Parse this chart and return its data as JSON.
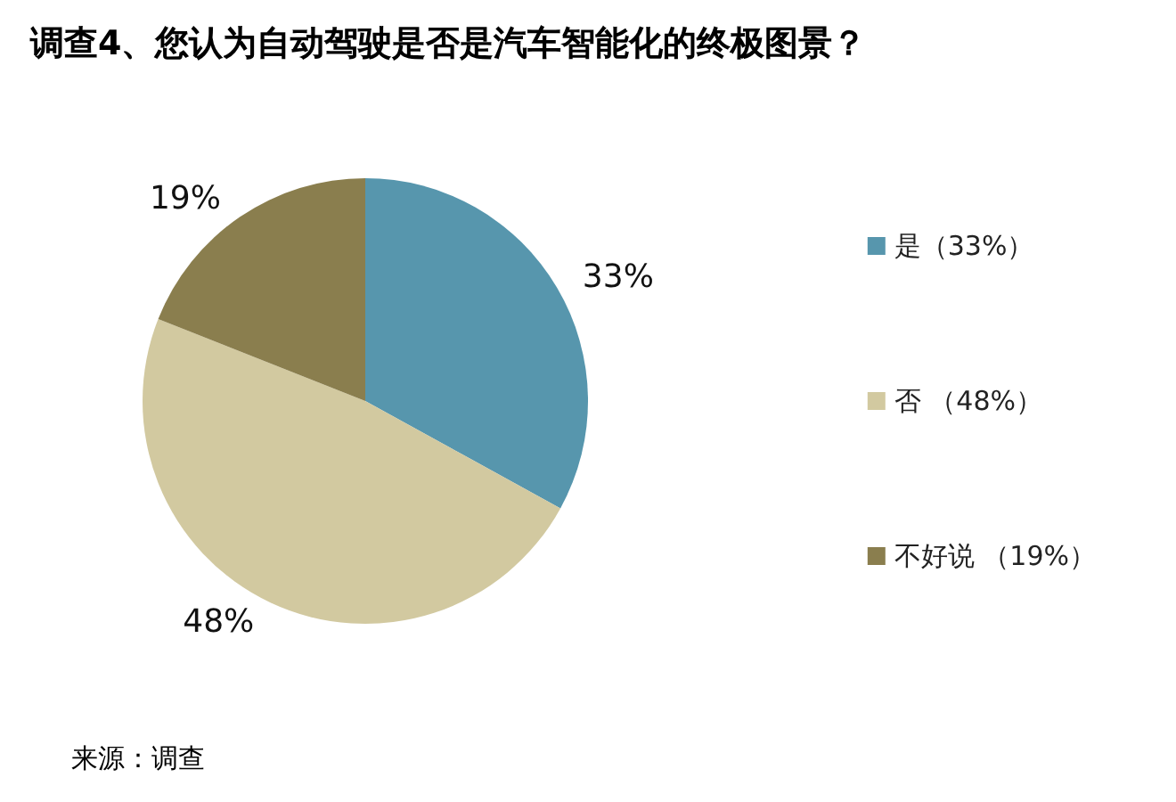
{
  "chart_data": {
    "type": "pie",
    "title": "调查4、您认为自动驾驶是否是汽车智能化的终极图景？",
    "categories": [
      "是（33%）",
      "否 （48%）",
      "不好说 （19%）"
    ],
    "values": [
      33,
      48,
      19
    ],
    "colors": [
      "#5796ad",
      "#d2c9a0",
      "#8a7e4e"
    ],
    "value_labels": [
      "33%",
      "48%",
      "19%"
    ],
    "legend": "right",
    "annotations": [
      "来源：调查"
    ]
  }
}
